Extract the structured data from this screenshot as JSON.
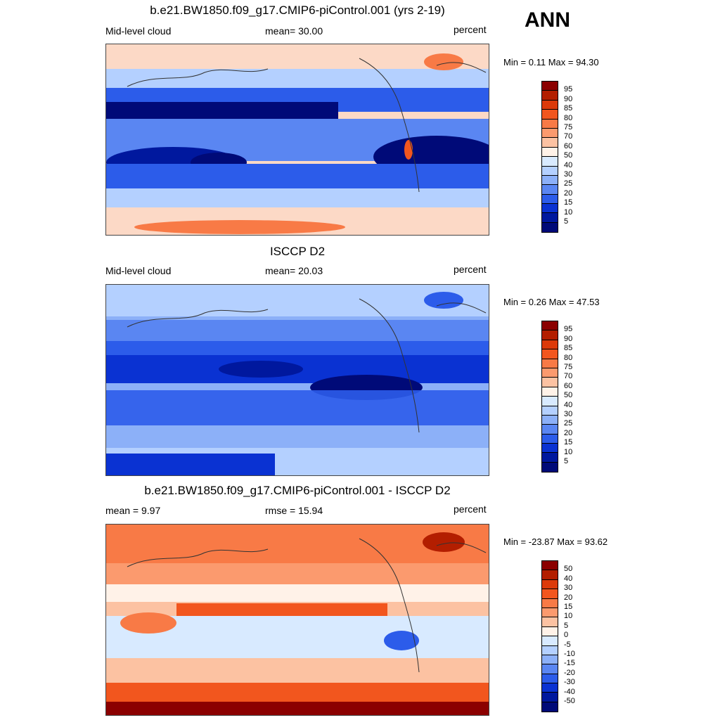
{
  "ann_label": "ANN",
  "panels": [
    {
      "title": "b.e21.BW1850.f09_g17.CMIP6-piControl.001 (yrs 2-19)",
      "left_label": "Mid-level cloud",
      "center_label": "mean=  30.00",
      "right_label": "percent",
      "minmax": "Min =   0.11 Max =  94.30",
      "levels": [
        "95",
        "90",
        "85",
        "80",
        "75",
        "70",
        "60",
        "50",
        "40",
        "30",
        "25",
        "20",
        "15",
        "10",
        "5"
      ],
      "colors": [
        "#8b0000",
        "#b31e00",
        "#dc3a0a",
        "#f2561e",
        "#f87a46",
        "#fb9a6e",
        "#fcc2a2",
        "#fff2e8",
        "#d8eaff",
        "#b4d0ff",
        "#8cb0f8",
        "#5a86f2",
        "#2c5cea",
        "#0a32d2",
        "#00189e",
        "#000a78"
      ],
      "chart_data": {
        "type": "heatmap",
        "title": "b.e21.BW1850.f09_g17.CMIP6-piControl.001 (yrs 2-19)",
        "variable": "Mid-level cloud",
        "units": "percent",
        "mean": 30.0,
        "min": 0.11,
        "max": 94.3,
        "contour_levels": [
          5,
          10,
          15,
          20,
          25,
          30,
          40,
          50,
          60,
          70,
          75,
          80,
          85,
          90,
          95
        ]
      }
    },
    {
      "title": "ISCCP D2",
      "left_label": "Mid-level cloud",
      "center_label": "mean=  20.03",
      "right_label": "percent",
      "minmax": "Min =   0.26 Max =  47.53",
      "levels": [
        "95",
        "90",
        "85",
        "80",
        "75",
        "70",
        "60",
        "50",
        "40",
        "30",
        "25",
        "20",
        "15",
        "10",
        "5"
      ],
      "colors": [
        "#8b0000",
        "#b31e00",
        "#dc3a0a",
        "#f2561e",
        "#f87a46",
        "#fb9a6e",
        "#fcc2a2",
        "#fff2e8",
        "#d8eaff",
        "#b4d0ff",
        "#8cb0f8",
        "#5a86f2",
        "#2c5cea",
        "#0a32d2",
        "#00189e",
        "#000a78"
      ],
      "chart_data": {
        "type": "heatmap",
        "title": "ISCCP D2",
        "variable": "Mid-level cloud",
        "units": "percent",
        "mean": 20.03,
        "min": 0.26,
        "max": 47.53,
        "contour_levels": [
          5,
          10,
          15,
          20,
          25,
          30,
          40,
          50,
          60,
          70,
          75,
          80,
          85,
          90,
          95
        ]
      }
    },
    {
      "title": "b.e21.BW1850.f09_g17.CMIP6-piControl.001 - ISCCP D2",
      "left_label": "mean =   9.97",
      "center_label": "rmse =  15.94",
      "right_label": "percent",
      "minmax": "Min = -23.87 Max =  93.62",
      "levels": [
        "50",
        "40",
        "30",
        "20",
        "15",
        "10",
        "5",
        "0",
        "-5",
        "-10",
        "-15",
        "-20",
        "-30",
        "-40",
        "-50"
      ],
      "colors": [
        "#8b0000",
        "#b31e00",
        "#dc3a0a",
        "#f2561e",
        "#f87a46",
        "#fb9a6e",
        "#fcc2a2",
        "#fff2e8",
        "#d8eaff",
        "#b4d0ff",
        "#8cb0f8",
        "#5a86f2",
        "#2c5cea",
        "#0a32d2",
        "#00189e",
        "#000a78"
      ],
      "chart_data": {
        "type": "heatmap",
        "title": "b.e21.BW1850.f09_g17.CMIP6-piControl.001 - ISCCP D2",
        "units": "percent",
        "mean": 9.97,
        "rmse": 15.94,
        "min": -23.87,
        "max": 93.62,
        "contour_levels": [
          -50,
          -40,
          -30,
          -20,
          -15,
          -10,
          -5,
          0,
          5,
          10,
          15,
          20,
          30,
          40,
          50
        ]
      }
    }
  ]
}
